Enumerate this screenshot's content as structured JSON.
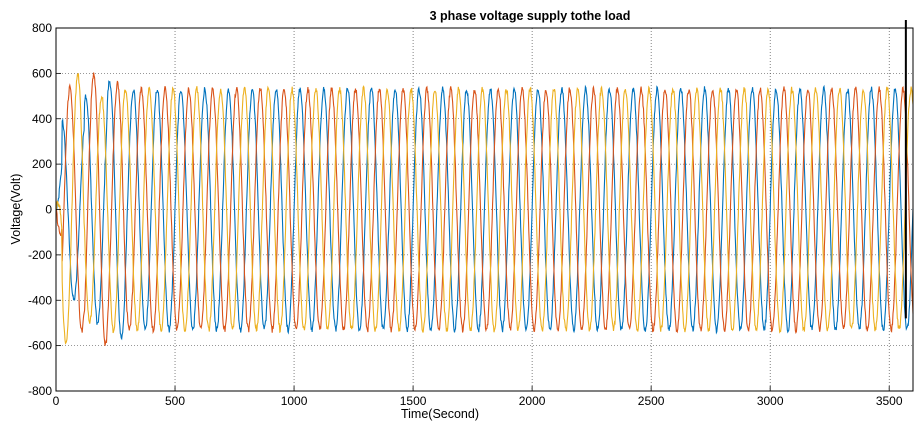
{
  "chart_data": {
    "type": "line",
    "title": "3 phase voltage supply tothe load",
    "xlabel": "Time(Second)",
    "ylabel": "Voltage(Volt)",
    "xlim": [
      0,
      3600
    ],
    "ylim": [
      -800,
      800
    ],
    "xticks": [
      0,
      500,
      1000,
      1500,
      2000,
      2500,
      3000,
      3500
    ],
    "yticks": [
      800,
      600,
      400,
      200,
      0,
      -200,
      -400,
      -600,
      -800
    ],
    "grid": true,
    "legend": "none",
    "series_colors": [
      "#0072BD",
      "#D95319",
      "#EDB120"
    ],
    "period": 100,
    "steady_amplitude": 530,
    "phases_deg": [
      0,
      -120,
      120
    ],
    "transient": {
      "blue_peaks": [
        240,
        470,
        -610
      ],
      "red_peaks": [
        550,
        -680,
        -590
      ],
      "yellow_peaks": [
        670,
        -460,
        -540
      ]
    },
    "vertical_marker_x": 3570,
    "vertical_marker_color": "#000000"
  }
}
